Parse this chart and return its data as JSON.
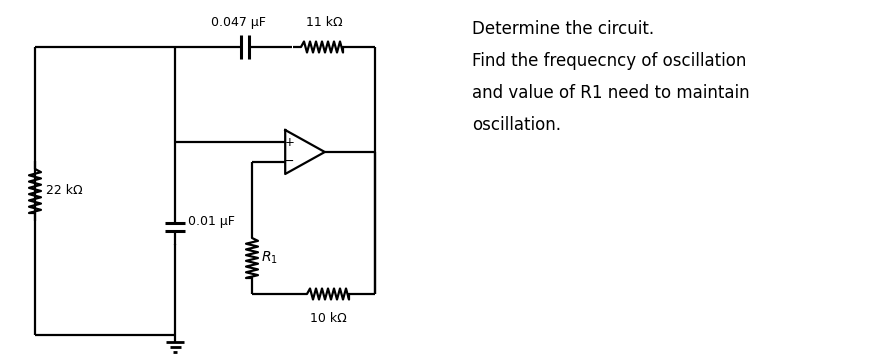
{
  "bg_color": "#ffffff",
  "line_color": "#000000",
  "text_color": "#000000",
  "label_22k": "22 kΩ",
  "label_001uF": "0.01 μF",
  "label_0047uF": "0.047 μF",
  "label_11k": "11 kΩ",
  "label_10k": "10 kΩ",
  "label_R1": "$R_1$",
  "text_line1": "Determine the circuit.",
  "text_line2": "Find the frequecncy of oscillation",
  "text_line3": "and value of R1 need to maintain",
  "text_line4": "oscillation.",
  "text_fontsize": 12,
  "label_fontsize": 9,
  "circuit_lw": 1.6
}
